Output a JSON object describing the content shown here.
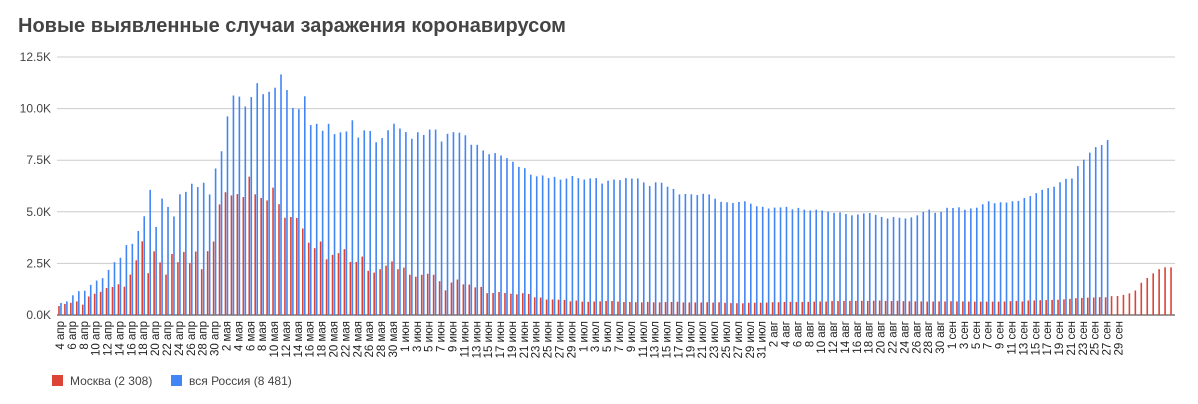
{
  "chart_data": {
    "type": "bar",
    "title": "Новые выявленные случаи заражения коронавирусом",
    "x_start": "2020-04-04",
    "x_end": "2020-09-30",
    "x_tick_labels": [
      "4 апр",
      "6 апр",
      "8 апр",
      "10 апр",
      "12 апр",
      "14 апр",
      "16 апр",
      "18 апр",
      "20 апр",
      "22 апр",
      "24 апр",
      "26 апр",
      "28 апр",
      "30 апр",
      "2 мая",
      "4 мая",
      "6 мая",
      "8 мая",
      "10 мая",
      "12 мая",
      "14 мая",
      "16 мая",
      "18 мая",
      "20 мая",
      "22 мая",
      "24 мая",
      "26 мая",
      "28 мая",
      "30 мая",
      "1 июн",
      "3 июн",
      "5 июн",
      "7 июн",
      "9 июн",
      "11 июн",
      "13 июн",
      "15 июн",
      "17 июн",
      "19 июн",
      "21 июн",
      "23 июн",
      "25 июн",
      "27 июн",
      "29 июн",
      "1 июл",
      "3 июл",
      "5 июл",
      "7 июл",
      "9 июл",
      "11 июл",
      "13 июл",
      "15 июл",
      "17 июл",
      "19 июл",
      "21 июл",
      "23 июл",
      "25 июл",
      "27 июл",
      "29 июл",
      "31 июл",
      "2 авг",
      "4 авг",
      "6 авг",
      "8 авг",
      "10 авг",
      "12 авг",
      "14 авг",
      "16 авг",
      "18 авг",
      "20 авг",
      "22 авг",
      "24 авг",
      "26 авг",
      "28 авг",
      "30 авг",
      "1 сен",
      "3 сен",
      "5 сен",
      "7 сен",
      "9 сен",
      "11 сен",
      "13 сен",
      "15 сен",
      "17 сен",
      "19 сен",
      "21 сен",
      "23 сен",
      "25 сен",
      "27 сен",
      "29 сен"
    ],
    "y_ticks": [
      0,
      2500,
      5000,
      7500,
      10000,
      12500
    ],
    "y_tick_labels": [
      "0.0K",
      "2.5K",
      "5.0K",
      "7.5K",
      "10.0K",
      "12.5K"
    ],
    "ylim": [
      0,
      12500
    ],
    "grid": true,
    "legend_position": "bottom-left",
    "series": [
      {
        "name": "Москва (2 308)",
        "color": "#db4437",
        "values": [
          434,
          536,
          591,
          660,
          500,
          897,
          1030,
          1124,
          1306,
          1355,
          1489,
          1370,
          1959,
          2649,
          3570,
          2026,
          3083,
          2548,
          1958,
          2957,
          2558,
          3055,
          2512,
          3075,
          2220,
          3093,
          3561,
          5358,
          5948,
          5795,
          5858,
          5714,
          6703,
          5846,
          5667,
          5551,
          6169,
          5369,
          4712,
          4748,
          4703,
          4190,
          3505,
          3238,
          3560,
          2699,
          2913,
          2995,
          3190,
          2568,
          2567,
          2830,
          2140,
          2054,
          2220,
          2390,
          2595,
          2220,
          2297,
          1951,
          1854,
          1947,
          1998,
          1949,
          1636,
          1195,
          1572,
          1719,
          1484,
          1475,
          1338,
          1363,
          1057,
          1066,
          1112,
          1067,
          1030,
          1002,
          1057,
          1020,
          857,
          846,
          747,
          750,
          741,
          729,
          662,
          700,
          646,
          636,
          650,
          659,
          679,
          676,
          650,
          628,
          630,
          621,
          611,
          634,
          612,
          614,
          629,
          632,
          641,
          610,
          607,
          608,
          605,
          620,
          603,
          615,
          593,
          576,
          571,
          567,
          594,
          594,
          595,
          602,
          619,
          617,
          633,
          639,
          628,
          633,
          636,
          649,
          654,
          653,
          676,
          680,
          681,
          684,
          683,
          688,
          682,
          691,
          700,
          683,
          676,
          687,
          669,
          666,
          662,
          658,
          649,
          653,
          662,
          656,
          669,
          660,
          658,
          650,
          646,
          646,
          647,
          648,
          648,
          653,
          669,
          681,
          655,
          701,
          702,
          714,
          723,
          733,
          737,
          758,
          782,
          814,
          829,
          840,
          845,
          866,
          857,
          914,
          922,
          975,
          1048,
          1185,
          1560,
          1792,
          2016,
          2217,
          2308,
          2308
        ]
      },
      {
        "name": "вся Россия (8 481)",
        "color": "#4285f4",
        "values": [
          582,
          658,
          954,
          1154,
          1175,
          1459,
          1667,
          1786,
          2186,
          2558,
          2774,
          3388,
          3448,
          4070,
          4785,
          6060,
          4268,
          5642,
          5236,
          4774,
          5849,
          5966,
          6361,
          6198,
          6411,
          5841,
          7099,
          7933,
          9623,
          10633,
          10581,
          10102,
          10559,
          11231,
          10699,
          10817,
          11012,
          11656,
          10899,
          10028,
          9974,
          10598,
          9200,
          9263,
          8926,
          9263,
          8764,
          8849,
          8894,
          9434,
          8599,
          8946,
          8915,
          8371,
          8572,
          8952,
          9268,
          9035,
          8863,
          8536,
          8855,
          8726,
          8985,
          8984,
          8404,
          8779,
          8858,
          8835,
          8706,
          8248,
          8246,
          7972,
          7790,
          7843,
          7728,
          7600,
          7425,
          7176,
          7113,
          6800,
          6719,
          6760,
          6632,
          6693,
          6556,
          6611,
          6736,
          6632,
          6562,
          6615,
          6635,
          6368,
          6509,
          6562,
          6536,
          6635,
          6611,
          6615,
          6422,
          6248,
          6428,
          6406,
          6214,
          6109,
          5842,
          5862,
          5848,
          5811,
          5871,
          5842,
          5635,
          5482,
          5462,
          5427,
          5475,
          5509,
          5394,
          5267,
          5241,
          5159,
          5204,
          5212,
          5241,
          5118,
          5189,
          5106,
          5065,
          5102,
          5061,
          5010,
          4945,
          4969,
          4892,
          4828,
          4870,
          4921,
          4941,
          4852,
          4748,
          4675,
          4744,
          4711,
          4676,
          4729,
          4829,
          4995,
          5110,
          4952,
          4993,
          5195,
          5185,
          5218,
          5099,
          5160,
          5199,
          5363,
          5509,
          5416,
          5462,
          5449,
          5509,
          5529,
          5670,
          5762,
          5905,
          6065,
          6148,
          6215,
          6431,
          6595,
          6611,
          7212,
          7523,
          7867,
          8135,
          8232,
          8481
        ]
      }
    ]
  }
}
